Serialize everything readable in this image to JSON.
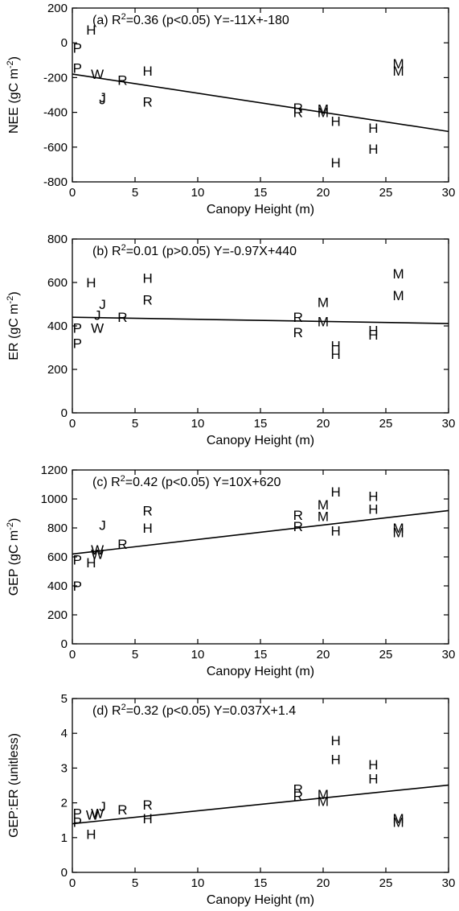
{
  "chart_data": [
    {
      "type": "scatter",
      "annotation": "(a) R²=0.36 (p<0.05) Y=-11X+-180",
      "xlabel": "Canopy Height (m)",
      "ylabel": "NEE (gC m⁻²)",
      "xlim": [
        0,
        30
      ],
      "ylim": [
        -800,
        200
      ],
      "xticks": [
        0,
        5,
        10,
        15,
        20,
        25,
        30
      ],
      "yticks": [
        -800,
        -600,
        -400,
        -200,
        0,
        200
      ],
      "points": [
        {
          "label": "H",
          "x": 1.5,
          "y": 75
        },
        {
          "label": "P",
          "x": 0.4,
          "y": -30
        },
        {
          "label": "P",
          "x": 0.4,
          "y": -145
        },
        {
          "label": "W",
          "x": 2.0,
          "y": -180
        },
        {
          "label": "J",
          "x": 2.4,
          "y": -315
        },
        {
          "label": "J",
          "x": 2.4,
          "y": -325
        },
        {
          "label": "R",
          "x": 4.0,
          "y": -215
        },
        {
          "label": "H",
          "x": 6.0,
          "y": -160
        },
        {
          "label": "R",
          "x": 6.0,
          "y": -340
        },
        {
          "label": "R",
          "x": 18.0,
          "y": -375
        },
        {
          "label": "R",
          "x": 18.0,
          "y": -400
        },
        {
          "label": "M",
          "x": 20.0,
          "y": -380
        },
        {
          "label": "M",
          "x": 20.0,
          "y": -400
        },
        {
          "label": "H",
          "x": 21.0,
          "y": -450
        },
        {
          "label": "H",
          "x": 21.0,
          "y": -690
        },
        {
          "label": "H",
          "x": 24.0,
          "y": -490
        },
        {
          "label": "H",
          "x": 24.0,
          "y": -610
        },
        {
          "label": "M",
          "x": 26.0,
          "y": -120
        },
        {
          "label": "M",
          "x": 26.0,
          "y": -160
        }
      ],
      "fit": {
        "slope": -11,
        "intercept": -180
      }
    },
    {
      "type": "scatter",
      "annotation": "(b) R²=0.01 (p>0.05) Y=-0.97X+440",
      "xlabel": "Canopy Height (m)",
      "ylabel": "ER (gC m⁻²)",
      "xlim": [
        0,
        30
      ],
      "ylim": [
        0,
        800
      ],
      "xticks": [
        0,
        5,
        10,
        15,
        20,
        25,
        30
      ],
      "yticks": [
        0,
        200,
        400,
        600,
        800
      ],
      "points": [
        {
          "label": "H",
          "x": 1.5,
          "y": 600
        },
        {
          "label": "J",
          "x": 2.4,
          "y": 500
        },
        {
          "label": "J",
          "x": 2.0,
          "y": 450
        },
        {
          "label": "P",
          "x": 0.4,
          "y": 390
        },
        {
          "label": "W",
          "x": 2.0,
          "y": 390
        },
        {
          "label": "P",
          "x": 0.4,
          "y": 320
        },
        {
          "label": "R",
          "x": 4.0,
          "y": 440
        },
        {
          "label": "H",
          "x": 6.0,
          "y": 620
        },
        {
          "label": "R",
          "x": 6.0,
          "y": 520
        },
        {
          "label": "R",
          "x": 18.0,
          "y": 440
        },
        {
          "label": "R",
          "x": 18.0,
          "y": 370
        },
        {
          "label": "M",
          "x": 20.0,
          "y": 510
        },
        {
          "label": "M",
          "x": 20.0,
          "y": 420
        },
        {
          "label": "H",
          "x": 21.0,
          "y": 310
        },
        {
          "label": "H",
          "x": 21.0,
          "y": 270
        },
        {
          "label": "H",
          "x": 24.0,
          "y": 380
        },
        {
          "label": "H",
          "x": 24.0,
          "y": 360
        },
        {
          "label": "M",
          "x": 26.0,
          "y": 640
        },
        {
          "label": "M",
          "x": 26.0,
          "y": 540
        }
      ],
      "fit": {
        "slope": -0.97,
        "intercept": 440
      }
    },
    {
      "type": "scatter",
      "annotation": "(c) R²=0.42 (p<0.05) Y=10X+620",
      "xlabel": "Canopy Height (m)",
      "ylabel": "GEP (gC m⁻²)",
      "xlim": [
        0,
        30
      ],
      "ylim": [
        0,
        1200
      ],
      "xticks": [
        0,
        5,
        10,
        15,
        20,
        25,
        30
      ],
      "yticks": [
        0,
        200,
        400,
        600,
        800,
        1000,
        1200
      ],
      "points": [
        {
          "label": "J",
          "x": 2.4,
          "y": 820
        },
        {
          "label": "W",
          "x": 2.0,
          "y": 650
        },
        {
          "label": "W",
          "x": 2.0,
          "y": 620
        },
        {
          "label": "P",
          "x": 0.4,
          "y": 580
        },
        {
          "label": "H",
          "x": 1.5,
          "y": 560
        },
        {
          "label": "P",
          "x": 0.4,
          "y": 400
        },
        {
          "label": "R",
          "x": 4.0,
          "y": 690
        },
        {
          "label": "R",
          "x": 6.0,
          "y": 920
        },
        {
          "label": "H",
          "x": 6.0,
          "y": 800
        },
        {
          "label": "R",
          "x": 18.0,
          "y": 890
        },
        {
          "label": "R",
          "x": 18.0,
          "y": 810
        },
        {
          "label": "M",
          "x": 20.0,
          "y": 960
        },
        {
          "label": "M",
          "x": 20.0,
          "y": 880
        },
        {
          "label": "H",
          "x": 21.0,
          "y": 1050
        },
        {
          "label": "H",
          "x": 21.0,
          "y": 780
        },
        {
          "label": "H",
          "x": 24.0,
          "y": 1020
        },
        {
          "label": "H",
          "x": 24.0,
          "y": 930
        },
        {
          "label": "M",
          "x": 26.0,
          "y": 800
        },
        {
          "label": "M",
          "x": 26.0,
          "y": 770
        }
      ],
      "fit": {
        "slope": 10,
        "intercept": 620
      }
    },
    {
      "type": "scatter",
      "annotation": "(d) R²=0.32 (p<0.05) Y=0.037X+1.4",
      "xlabel": "Canopy Height (m)",
      "ylabel": "GEP:ER (unitless)",
      "xlim": [
        0,
        30
      ],
      "ylim": [
        0,
        5
      ],
      "xticks": [
        0,
        5,
        10,
        15,
        20,
        25,
        30
      ],
      "yticks": [
        0,
        1,
        2,
        3,
        4,
        5
      ],
      "points": [
        {
          "label": "J",
          "x": 2.4,
          "y": 1.9
        },
        {
          "label": "W",
          "x": 2.0,
          "y": 1.7
        },
        {
          "label": "W",
          "x": 1.6,
          "y": 1.65
        },
        {
          "label": "P",
          "x": 0.4,
          "y": 1.7
        },
        {
          "label": "P",
          "x": 0.4,
          "y": 1.45
        },
        {
          "label": "H",
          "x": 1.5,
          "y": 1.1
        },
        {
          "label": "R",
          "x": 4.0,
          "y": 1.8
        },
        {
          "label": "R",
          "x": 6.0,
          "y": 1.95
        },
        {
          "label": "H",
          "x": 6.0,
          "y": 1.55
        },
        {
          "label": "R",
          "x": 18.0,
          "y": 2.4
        },
        {
          "label": "R",
          "x": 18.0,
          "y": 2.2
        },
        {
          "label": "M",
          "x": 20.0,
          "y": 2.25
        },
        {
          "label": "M",
          "x": 20.0,
          "y": 2.05
        },
        {
          "label": "H",
          "x": 21.0,
          "y": 3.8
        },
        {
          "label": "H",
          "x": 21.0,
          "y": 3.25
        },
        {
          "label": "H",
          "x": 24.0,
          "y": 3.1
        },
        {
          "label": "H",
          "x": 24.0,
          "y": 2.7
        },
        {
          "label": "M",
          "x": 26.0,
          "y": 1.55
        },
        {
          "label": "M",
          "x": 26.0,
          "y": 1.45
        }
      ],
      "fit": {
        "slope": 0.037,
        "intercept": 1.4
      }
    }
  ]
}
